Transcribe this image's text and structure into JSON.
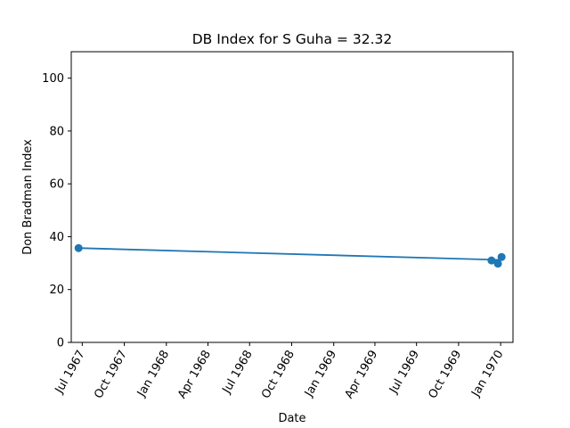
{
  "chart_data": {
    "type": "line",
    "title": "DB Index for S Guha = 32.32",
    "xlabel": "Date",
    "ylabel": "Don Bradman Index",
    "x_tick_labels": [
      "Jul 1967",
      "Oct 1967",
      "Jan 1968",
      "Apr 1968",
      "Jul 1968",
      "Oct 1968",
      "Jan 1969",
      "Apr 1969",
      "Jul 1969",
      "Oct 1969",
      "Jan 1970"
    ],
    "x_tick_dates": [
      "1967-07-01",
      "1967-10-01",
      "1968-01-01",
      "1968-04-01",
      "1968-07-01",
      "1968-10-01",
      "1969-01-01",
      "1969-04-01",
      "1969-07-01",
      "1969-10-01",
      "1970-01-01"
    ],
    "xlim": [
      "1967-06-07",
      "1970-01-28"
    ],
    "ylim": [
      0,
      110
    ],
    "y_ticks": [
      0,
      20,
      40,
      60,
      80,
      100
    ],
    "y_tick_labels": [
      "0",
      "20",
      "40",
      "60",
      "80",
      "100"
    ],
    "grid": false,
    "series": [
      {
        "color": "#1f77b4",
        "markers": true,
        "points": [
          {
            "x": "1967-06-23",
            "y": 35.7
          },
          {
            "x": "1969-12-12",
            "y": 31.0
          },
          {
            "x": "1969-12-26",
            "y": 29.8
          },
          {
            "x": "1970-01-03",
            "y": 32.32
          }
        ]
      }
    ],
    "trend_line": {
      "color": "#1f77b4",
      "points": [
        {
          "x": "1967-06-23",
          "y": 35.7
        },
        {
          "x": "1970-01-03",
          "y": 31.2
        }
      ]
    }
  }
}
